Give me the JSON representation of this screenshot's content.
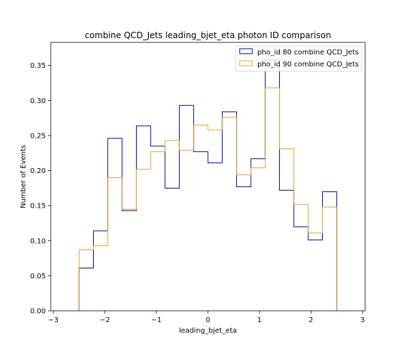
{
  "chart_data": {
    "type": "histogram-step",
    "title": "combine QCD_Jets leading_bjet_eta photon ID comparison",
    "xlabel": "leading_bjet_eta",
    "ylabel": "Number of Events",
    "xlim": [
      -3.05,
      3.05
    ],
    "ylim": [
      0,
      0.383
    ],
    "xticks": [
      -3,
      -2,
      -1,
      0,
      1,
      2,
      3
    ],
    "xtick_labels": [
      "−3",
      "−2",
      "−1",
      "0",
      "1",
      "2",
      "3"
    ],
    "yticks": [
      0,
      0.05,
      0.1,
      0.15,
      0.2,
      0.25,
      0.3,
      0.35
    ],
    "ytick_labels": [
      "0.00",
      "0.05",
      "0.10",
      "0.15",
      "0.20",
      "0.25",
      "0.30",
      "0.35"
    ],
    "bin_edges": [
      -2.5,
      -2.2222,
      -1.9444,
      -1.6667,
      -1.3889,
      -1.1111,
      -0.8333,
      -0.5556,
      -0.2778,
      0.0,
      0.2778,
      0.5556,
      0.8333,
      1.1111,
      1.3889,
      1.6667,
      1.9444,
      2.2222,
      2.5
    ],
    "series": [
      {
        "name": "pho_id 80 combine QCD_Jets",
        "color": "#0000aa",
        "values": [
          0.061,
          0.114,
          0.246,
          0.143,
          0.264,
          0.235,
          0.175,
          0.293,
          0.227,
          0.211,
          0.284,
          0.177,
          0.217,
          0.358,
          0.172,
          0.12,
          0.101,
          0.17
        ]
      },
      {
        "name": "pho_id 90 combine QCD_Jets",
        "color": "#e8a020",
        "values": [
          0.087,
          0.093,
          0.19,
          0.145,
          0.202,
          0.227,
          0.243,
          0.229,
          0.265,
          0.258,
          0.276,
          0.194,
          0.204,
          0.318,
          0.231,
          0.152,
          0.111,
          0.148
        ]
      }
    ],
    "legend_position": "top-right",
    "grid": false
  }
}
